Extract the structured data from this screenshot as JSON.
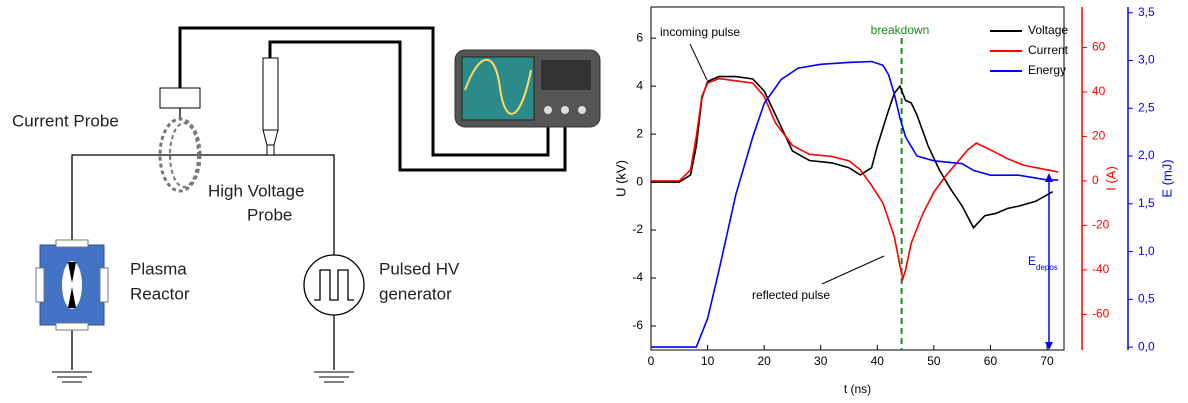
{
  "diagram": {
    "labels": {
      "current_probe": [
        "Current Probe"
      ],
      "hv_probe": [
        "High Voltage",
        "Probe"
      ],
      "reactor": [
        "Plasma",
        "Reactor"
      ],
      "generator": [
        "Pulsed HV",
        "generator"
      ]
    }
  },
  "chart_data": {
    "type": "line",
    "xlabel": "t (ns)",
    "ylabel": "U (kV)",
    "y2label": "I (A)",
    "y3label": "E (mJ)",
    "xlim": [
      0,
      73
    ],
    "xticks": [
      0,
      10,
      20,
      30,
      40,
      50,
      60,
      70
    ],
    "ylim": [
      -7,
      7.3
    ],
    "yticks": [
      -6,
      -4,
      -2,
      0,
      2,
      4,
      6
    ],
    "y2lim": [
      -76,
      78.2
    ],
    "y2ticks": [
      -60,
      -40,
      -20,
      0,
      20,
      40,
      60
    ],
    "y3lim": [
      -0.03,
      3.56
    ],
    "y3ticks": [
      {
        "value": 0,
        "label": "0,0"
      },
      {
        "value": 0.5,
        "label": "0,5"
      },
      {
        "value": 1,
        "label": "1,0"
      },
      {
        "value": 1.5,
        "label": "1,5"
      },
      {
        "value": 2,
        "label": "2,0"
      },
      {
        "value": 2.5,
        "label": "2,5"
      },
      {
        "value": 3,
        "label": "3,0"
      },
      {
        "value": 3.5,
        "label": "3,5"
      }
    ],
    "legend": "top-right",
    "breakdown_x": 44.3,
    "annotations": [
      {
        "text": "incoming pulse"
      },
      {
        "text": "reflected pulse"
      },
      {
        "text": "breakdown"
      },
      {
        "text": "E",
        "subscript": "depos"
      }
    ],
    "series": [
      {
        "name": "Voltage",
        "color": "#000000",
        "axis": "y",
        "x": [
          0,
          5,
          7,
          8,
          9,
          10,
          12,
          15,
          18,
          20,
          22,
          25,
          28,
          32,
          35,
          37,
          39,
          40,
          42,
          43,
          44,
          45,
          46,
          47,
          49,
          51,
          53,
          55,
          57,
          59,
          61,
          63,
          65,
          68,
          71
        ],
        "values": [
          0,
          0,
          0.3,
          1.5,
          3.5,
          4.2,
          4.4,
          4.4,
          4.3,
          3.8,
          2.8,
          1.3,
          0.9,
          0.8,
          0.6,
          0.3,
          0.6,
          1.5,
          3.0,
          3.7,
          4.0,
          3.4,
          3.3,
          2.8,
          1.5,
          0.5,
          -0.3,
          -1.0,
          -1.9,
          -1.4,
          -1.3,
          -1.1,
          -1.0,
          -0.8,
          -0.4
        ]
      },
      {
        "name": "Current",
        "color": "#ff0000",
        "axis": "y2",
        "x": [
          0,
          5,
          7,
          8,
          9,
          10,
          12,
          15,
          18,
          20,
          22,
          25,
          28,
          32,
          35,
          37,
          39,
          41,
          43,
          44,
          44.5,
          45,
          46,
          48,
          50,
          52,
          54,
          56,
          57.5,
          60,
          63,
          66,
          70,
          72
        ],
        "values": [
          0,
          0,
          5,
          20,
          38,
          44,
          46,
          45,
          44,
          38,
          26,
          16,
          12,
          11,
          9,
          5,
          -2,
          -10,
          -25,
          -38,
          -44,
          -40,
          -28,
          -15,
          -5,
          2,
          8,
          14,
          17,
          14,
          10,
          7,
          5,
          4
        ]
      },
      {
        "name": "Energy",
        "color": "#0000ff",
        "axis": "y3",
        "x": [
          0,
          8,
          10,
          12,
          15,
          18,
          20,
          23,
          26,
          30,
          35,
          39,
          41,
          42,
          43,
          44,
          45,
          47,
          50,
          55,
          57,
          60,
          65,
          70,
          72
        ],
        "values": [
          0,
          0,
          0.3,
          0.8,
          1.6,
          2.2,
          2.55,
          2.8,
          2.92,
          2.96,
          2.98,
          2.99,
          2.95,
          2.85,
          2.65,
          2.4,
          2.2,
          2.0,
          1.95,
          1.92,
          1.85,
          1.8,
          1.8,
          1.75,
          1.75
        ]
      }
    ]
  }
}
